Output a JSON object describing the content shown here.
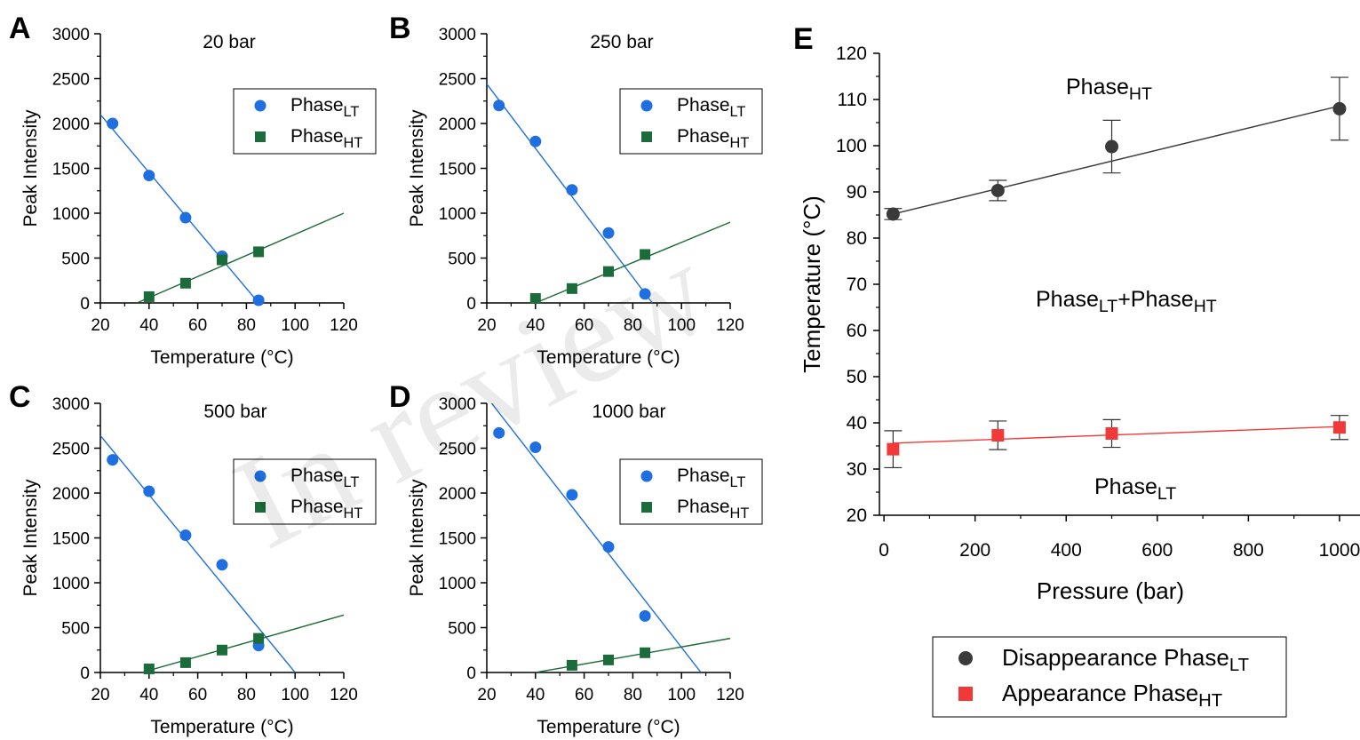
{
  "watermark": "In review",
  "legend_small": [
    {
      "main": "Phase",
      "sub": "LT",
      "color": "#1f6fe0",
      "marker": "circle"
    },
    {
      "main": "Phase",
      "sub": "HT",
      "color": "#1c6b3a",
      "marker": "square"
    }
  ],
  "legend_e": [
    {
      "main": "Disappearance Phase",
      "sub": "LT",
      "color": "#3a3a3a",
      "marker": "circle"
    },
    {
      "main": "Appearance Phase",
      "sub": "HT",
      "color": "#f03a3a",
      "marker": "square"
    }
  ],
  "regions_e": {
    "top": {
      "main": "Phase",
      "sub": "HT"
    },
    "middle": {
      "a": "Phase",
      "a_sub": "LT",
      "plus": "+Phase",
      "b_sub": "HT"
    },
    "bottom": {
      "main": "Phase",
      "sub": "LT"
    }
  },
  "chart_data": [
    {
      "panel": "A",
      "type": "scatter",
      "condition": "20 bar",
      "xlabel": "Temperature (°C)",
      "ylabel": "Peak Intensity",
      "xlim": [
        20,
        120
      ],
      "ylim": [
        0,
        3000
      ],
      "xticks": [
        20,
        40,
        60,
        80,
        100,
        120
      ],
      "yticks": [
        0,
        500,
        1000,
        1500,
        2000,
        2500,
        3000
      ],
      "series": [
        {
          "name": "PhaseLT",
          "marker": "circle",
          "color": "#1f6fe0",
          "x": [
            25,
            40,
            55,
            70,
            85
          ],
          "y": [
            2000,
            1420,
            950,
            520,
            30
          ],
          "fit": {
            "x0": 20,
            "y0": 2100,
            "x1": 85,
            "y1": 0
          }
        },
        {
          "name": "PhaseHT",
          "marker": "square",
          "color": "#1c6b3a",
          "x": [
            40,
            55,
            70,
            85
          ],
          "y": [
            70,
            220,
            480,
            570
          ],
          "fit": {
            "x0": 35,
            "y0": 0,
            "x1": 120,
            "y1": 1000
          }
        }
      ]
    },
    {
      "panel": "B",
      "type": "scatter",
      "condition": "250 bar",
      "xlabel": "Temperature (°C)",
      "ylabel": "Peak Intensity",
      "xlim": [
        20,
        120
      ],
      "ylim": [
        0,
        3000
      ],
      "xticks": [
        20,
        40,
        60,
        80,
        100,
        120
      ],
      "yticks": [
        0,
        500,
        1000,
        1500,
        2000,
        2500,
        3000
      ],
      "series": [
        {
          "name": "PhaseLT",
          "marker": "circle",
          "color": "#1f6fe0",
          "x": [
            25,
            40,
            55,
            70,
            85
          ],
          "y": [
            2200,
            1800,
            1260,
            780,
            100
          ],
          "fit": {
            "x0": 20,
            "y0": 2440,
            "x1": 88,
            "y1": 0
          }
        },
        {
          "name": "PhaseHT",
          "marker": "square",
          "color": "#1c6b3a",
          "x": [
            40,
            55,
            70,
            85
          ],
          "y": [
            50,
            160,
            350,
            540
          ],
          "fit": {
            "x0": 40,
            "y0": 0,
            "x1": 120,
            "y1": 900
          }
        }
      ]
    },
    {
      "panel": "C",
      "type": "scatter",
      "condition": "500 bar",
      "xlabel": "Temperature (°C)",
      "ylabel": "Peak Intensity",
      "xlim": [
        20,
        120
      ],
      "ylim": [
        0,
        3000
      ],
      "xticks": [
        20,
        40,
        60,
        80,
        100,
        120
      ],
      "yticks": [
        0,
        500,
        1000,
        1500,
        2000,
        2500,
        3000
      ],
      "series": [
        {
          "name": "PhaseLT",
          "marker": "circle",
          "color": "#1f6fe0",
          "x": [
            25,
            40,
            55,
            70,
            85
          ],
          "y": [
            2370,
            2020,
            1530,
            1200,
            300
          ],
          "fit": {
            "x0": 20,
            "y0": 2640,
            "x1": 100,
            "y1": 0
          }
        },
        {
          "name": "PhaseHT",
          "marker": "square",
          "color": "#1c6b3a",
          "x": [
            40,
            55,
            70,
            85
          ],
          "y": [
            40,
            110,
            250,
            380
          ],
          "fit": {
            "x0": 37,
            "y0": 0,
            "x1": 120,
            "y1": 640
          }
        }
      ]
    },
    {
      "panel": "D",
      "type": "scatter",
      "condition": "1000 bar",
      "xlabel": "Temperature (°C)",
      "ylabel": "Peak Intensity",
      "xlim": [
        20,
        120
      ],
      "ylim": [
        0,
        3000
      ],
      "xticks": [
        20,
        40,
        60,
        80,
        100,
        120
      ],
      "yticks": [
        0,
        500,
        1000,
        1500,
        2000,
        2500,
        3000
      ],
      "series": [
        {
          "name": "PhaseLT",
          "marker": "circle",
          "color": "#1f6fe0",
          "x": [
            25,
            40,
            55,
            70,
            85
          ],
          "y": [
            2670,
            2510,
            1980,
            1400,
            630
          ],
          "fit": {
            "x0": 22,
            "y0": 3000,
            "x1": 108,
            "y1": 0
          }
        },
        {
          "name": "PhaseHT",
          "marker": "square",
          "color": "#1c6b3a",
          "x": [
            55,
            70,
            85
          ],
          "y": [
            80,
            140,
            220
          ],
          "fit": {
            "x0": 40,
            "y0": 0,
            "x1": 120,
            "y1": 380
          }
        }
      ]
    },
    {
      "panel": "E",
      "type": "scatter",
      "xlabel": "Pressure (bar)",
      "ylabel": "Temperature (°C)",
      "xlim": [
        -10,
        1045
      ],
      "ylim": [
        20,
        120
      ],
      "xticks": [
        0,
        200,
        400,
        600,
        800,
        1000
      ],
      "yticks": [
        20,
        30,
        40,
        50,
        60,
        70,
        80,
        90,
        100,
        110,
        120
      ],
      "series": [
        {
          "name": "Disappearance PhaseLT",
          "marker": "circle",
          "color": "#3a3a3a",
          "x": [
            20,
            250,
            500,
            1000
          ],
          "y": [
            85.2,
            90.3,
            99.8,
            108.0
          ],
          "err": [
            1.2,
            2.2,
            5.7,
            6.8
          ],
          "fit": {
            "x0": 20,
            "y0": 85.2,
            "x1": 1000,
            "y1": 108.6
          }
        },
        {
          "name": "Appearance PhaseHT",
          "marker": "square",
          "color": "#f03a3a",
          "x": [
            20,
            250,
            500,
            1000
          ],
          "y": [
            34.3,
            37.3,
            37.7,
            39.0
          ],
          "err": [
            4.0,
            3.1,
            3.0,
            2.6
          ],
          "fit": {
            "x0": 20,
            "y0": 35.6,
            "x1": 1000,
            "y1": 39.2
          }
        }
      ]
    }
  ]
}
